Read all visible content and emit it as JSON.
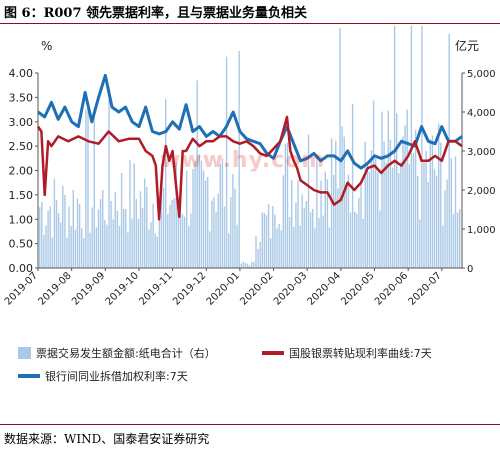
{
  "figure": {
    "title": "图 6：R007 领先票据利率，且与票据业务量负相关",
    "source": "数据来源：WIND、国泰君安证券研究",
    "watermark": "www.hy.com"
  },
  "chart_data": {
    "type": "bar+line",
    "x_ticks": [
      "2019-07",
      "2019-08",
      "2019-09",
      "2019-10",
      "2019-11",
      "2019-12",
      "2020-01",
      "2020-02",
      "2020-03",
      "2020-04",
      "2020-05",
      "2020-06",
      "2020-07"
    ],
    "left_axis": {
      "unit": "%",
      "ylim": [
        0,
        4.0
      ],
      "ticks": [
        "0.00",
        "0.50",
        "1.00",
        "1.50",
        "2.00",
        "2.50",
        "3.00",
        "3.50",
        "4.00"
      ]
    },
    "right_axis": {
      "unit": "亿元",
      "ylim": [
        0,
        5000
      ],
      "ticks": [
        "0",
        "1,000",
        "2,000",
        "3,000",
        "4,000",
        "5,000"
      ]
    },
    "colors": {
      "bars": "#a9c9e7",
      "r007": "#1f6fb5",
      "discount": "#b01c25"
    },
    "series": [
      {
        "name": "票据交易发生额金额:纸电合计（右）",
        "type": "bar",
        "axis": "right",
        "monthly_pattern": [
          1800,
          1900,
          2100,
          2000,
          2200,
          2500,
          1300,
          2600,
          2900,
          3300,
          3100,
          2900,
          2700
        ]
      },
      {
        "name": "国股银票转贴现利率曲线:7天",
        "type": "line",
        "axis": "left",
        "x": [
          0,
          0.1,
          0.2,
          0.3,
          0.4,
          0.6,
          0.9,
          1.2,
          1.5,
          1.8,
          2.1,
          2.4,
          2.7,
          3.0,
          3.2,
          3.4,
          3.5,
          3.6,
          3.7,
          3.8,
          3.9,
          4.0,
          4.1,
          4.2,
          4.3,
          4.4,
          4.6,
          4.8,
          5.0,
          5.2,
          5.4,
          5.6,
          5.8,
          6.0,
          6.2,
          6.4,
          6.6,
          6.8,
          7.0,
          7.2,
          7.4,
          7.5,
          7.6,
          7.7,
          7.8,
          8.0,
          8.2,
          8.4,
          8.6,
          8.8,
          9.0,
          9.2,
          9.4,
          9.6,
          9.8,
          10.0,
          10.2,
          10.4,
          10.6,
          10.8,
          11.0,
          11.2,
          11.4,
          11.6,
          11.8,
          12.0,
          12.2,
          12.4,
          12.6
        ],
        "y": [
          2.9,
          2.8,
          1.5,
          2.6,
          2.5,
          2.7,
          2.6,
          2.7,
          2.6,
          2.55,
          2.8,
          2.6,
          2.65,
          2.65,
          2.4,
          2.3,
          2.1,
          1.0,
          2.1,
          2.5,
          2.2,
          2.4,
          1.7,
          1.05,
          2.4,
          2.4,
          2.65,
          2.5,
          2.6,
          2.6,
          2.7,
          2.7,
          2.6,
          2.55,
          2.6,
          2.5,
          2.35,
          2.3,
          2.45,
          2.6,
          3.1,
          2.4,
          2.2,
          2.05,
          1.8,
          1.7,
          1.6,
          1.55,
          1.55,
          1.3,
          1.4,
          1.75,
          1.6,
          1.75,
          2.05,
          2.1,
          1.95,
          2.1,
          2.2,
          2.1,
          2.3,
          2.6,
          2.2,
          2.2,
          2.3,
          2.2,
          2.6,
          2.6,
          2.5
        ]
      },
      {
        "name": "银行间同业拆借加权利率:7天",
        "type": "line",
        "axis": "left",
        "x": [
          0,
          0.2,
          0.4,
          0.6,
          0.8,
          1.0,
          1.2,
          1.4,
          1.6,
          1.8,
          2.0,
          2.2,
          2.4,
          2.6,
          2.8,
          3.0,
          3.2,
          3.4,
          3.6,
          3.8,
          4.0,
          4.2,
          4.4,
          4.6,
          4.8,
          5.0,
          5.2,
          5.4,
          5.6,
          5.8,
          6.0,
          6.2,
          6.4,
          6.6,
          6.8,
          7.0,
          7.2,
          7.4,
          7.6,
          7.8,
          8.0,
          8.2,
          8.4,
          8.6,
          8.8,
          9.0,
          9.2,
          9.4,
          9.6,
          9.8,
          10.0,
          10.2,
          10.4,
          10.6,
          10.8,
          11.0,
          11.2,
          11.4,
          11.6,
          11.8,
          12.0,
          12.2,
          12.4,
          12.6
        ],
        "y": [
          3.2,
          3.1,
          3.4,
          3.05,
          3.3,
          3.0,
          2.9,
          3.6,
          3.0,
          3.5,
          3.95,
          3.3,
          3.2,
          3.3,
          3.0,
          2.9,
          3.3,
          2.8,
          2.75,
          2.8,
          3.0,
          2.85,
          3.35,
          2.8,
          2.9,
          2.7,
          2.8,
          2.7,
          2.9,
          3.2,
          2.8,
          2.65,
          2.6,
          2.55,
          2.35,
          2.25,
          2.6,
          2.9,
          2.55,
          2.2,
          2.25,
          2.35,
          2.2,
          2.3,
          2.3,
          2.2,
          2.4,
          2.15,
          2.05,
          2.15,
          2.3,
          2.25,
          2.3,
          2.4,
          2.6,
          2.55,
          2.5,
          2.9,
          2.6,
          2.55,
          2.9,
          2.6,
          2.6,
          2.7
        ]
      }
    ],
    "legend_placement": "bottom"
  }
}
